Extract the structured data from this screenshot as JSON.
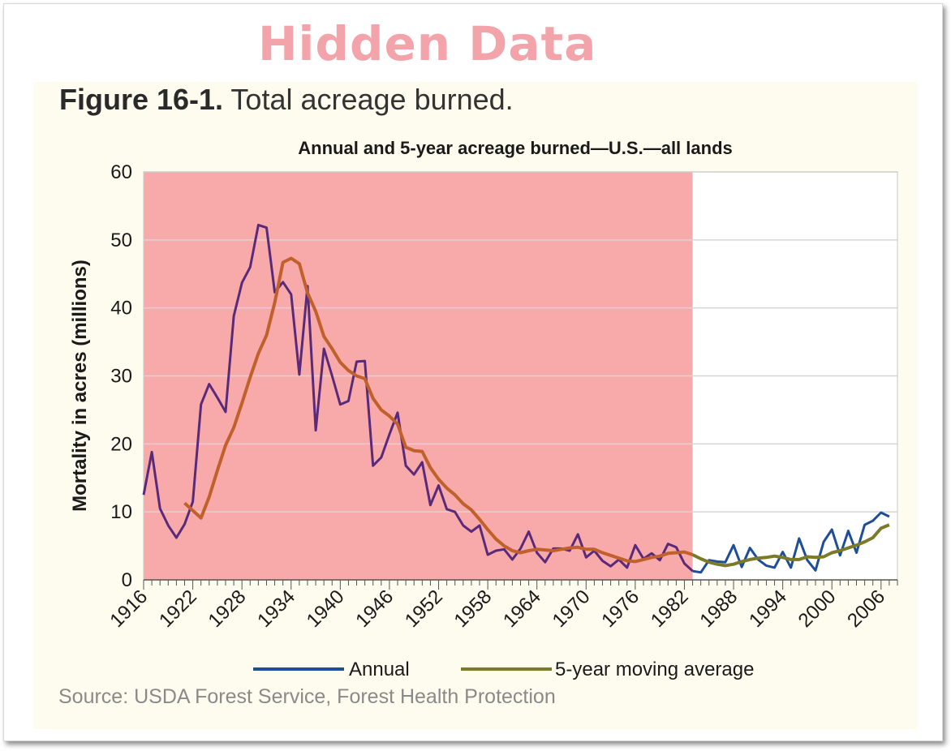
{
  "watermark": {
    "text": "Hidden Data"
  },
  "figure": {
    "label": "Figure 16-1.",
    "caption": "Total acreage burned."
  },
  "source": "Source: USDA Forest Service, Forest Health Protection",
  "colors": {
    "annual": "#1f4e99",
    "annual_highlighted": "#5a2a7a",
    "moving_average": "#7a7a2a",
    "moving_average_highlighted": "#c0602a",
    "highlight_region": "#f8aaaa",
    "grid": "#d6d6d6",
    "axis": "#555555"
  },
  "chart_data": {
    "type": "line",
    "title": "Annual and 5-year acreage burned—U.S.—all lands",
    "ylabel": "Mortality in acres (millions)",
    "xlabel": "",
    "xlim": [
      1916,
      2008
    ],
    "ylim": [
      0,
      60
    ],
    "yticks": [
      "0",
      "10",
      "20",
      "30",
      "40",
      "50",
      "60"
    ],
    "xticks": [
      "1916",
      "1922",
      "1928",
      "1934",
      "1940",
      "1946",
      "1952",
      "1958",
      "1964",
      "1970",
      "1976",
      "1982",
      "1988",
      "1994",
      "2000",
      "2006"
    ],
    "grid": true,
    "legend_position": "bottom",
    "highlight_region": {
      "x_start": 1916,
      "x_end": 1983,
      "label": "Hidden Data"
    },
    "series": [
      {
        "name": "Annual",
        "x": [
          1916,
          1917,
          1918,
          1919,
          1920,
          1921,
          1922,
          1923,
          1924,
          1925,
          1926,
          1927,
          1928,
          1929,
          1930,
          1931,
          1932,
          1933,
          1934,
          1935,
          1936,
          1937,
          1938,
          1939,
          1940,
          1941,
          1942,
          1943,
          1944,
          1945,
          1946,
          1947,
          1948,
          1949,
          1950,
          1951,
          1952,
          1953,
          1954,
          1955,
          1956,
          1957,
          1958,
          1959,
          1960,
          1961,
          1962,
          1963,
          1964,
          1965,
          1966,
          1967,
          1968,
          1969,
          1970,
          1971,
          1972,
          1973,
          1974,
          1975,
          1976,
          1977,
          1978,
          1979,
          1980,
          1981,
          1982,
          1983,
          1984,
          1985,
          1986,
          1987,
          1988,
          1989,
          1990,
          1991,
          1992,
          1993,
          1994,
          1995,
          1996,
          1997,
          1998,
          1999,
          2000,
          2001,
          2002,
          2003,
          2004,
          2005,
          2006,
          2007
        ],
        "values": [
          12.5,
          18.8,
          10.5,
          8,
          6.2,
          8.2,
          11.5,
          25.8,
          28.8,
          26.8,
          24.7,
          38.8,
          43.7,
          46,
          52.2,
          51.8,
          42.3,
          43.8,
          42,
          30.2,
          43.2,
          22,
          34,
          30,
          25.8,
          26.3,
          32.1,
          32.2,
          16.8,
          18,
          21.4,
          24.6,
          16.8,
          15.5,
          17.3,
          11,
          13.9,
          10.4,
          10,
          8,
          7.1,
          8,
          3.7,
          4.3,
          4.5,
          3,
          4.6,
          7.1,
          4,
          2.6,
          4.6,
          4.6,
          4.3,
          6.7,
          3.3,
          4.3,
          2.8,
          2,
          3,
          1.8,
          5.1,
          3.1,
          3.9,
          2.9,
          5.3,
          4.8,
          2.4,
          1.3,
          1.1,
          2.9,
          2.7,
          2.6,
          5.1,
          1.9,
          4.7,
          3,
          2.1,
          1.8,
          4.1,
          1.8,
          6.1,
          2.9,
          1.4,
          5.6,
          7.4,
          3.6,
          7.2,
          4,
          8.1,
          8.7,
          9.9,
          9.3
        ]
      },
      {
        "name": "5-year moving average",
        "x": [
          1921,
          1922,
          1923,
          1924,
          1925,
          1926,
          1927,
          1928,
          1929,
          1930,
          1931,
          1932,
          1933,
          1934,
          1935,
          1936,
          1937,
          1938,
          1939,
          1940,
          1941,
          1942,
          1943,
          1944,
          1945,
          1946,
          1947,
          1948,
          1949,
          1950,
          1951,
          1952,
          1953,
          1954,
          1955,
          1956,
          1957,
          1958,
          1959,
          1960,
          1961,
          1962,
          1963,
          1964,
          1965,
          1966,
          1967,
          1968,
          1969,
          1970,
          1971,
          1972,
          1973,
          1974,
          1975,
          1976,
          1977,
          1978,
          1979,
          1980,
          1981,
          1982,
          1983,
          1984,
          1985,
          1986,
          1987,
          1988,
          1989,
          1990,
          1991,
          1992,
          1993,
          1994,
          1995,
          1996,
          1997,
          1998,
          1999,
          2000,
          2001,
          2002,
          2003,
          2004,
          2005,
          2006,
          2007
        ],
        "values": [
          11.3,
          10.2,
          9.1,
          12.2,
          16.1,
          19.8,
          22.4,
          26,
          29.8,
          33.3,
          36,
          40.8,
          46.7,
          47.3,
          46.5,
          42.2,
          39.5,
          35.8,
          34,
          32,
          30.8,
          30,
          29.6,
          26.7,
          25,
          24.1,
          22.9,
          19.5,
          19,
          18.9,
          16.5,
          14.8,
          13.5,
          12.5,
          11.2,
          10.3,
          8.9,
          7.4,
          6,
          5,
          4.3,
          4,
          4.3,
          4.5,
          4.4,
          4.3,
          4.5,
          4.7,
          4.8,
          4.5,
          4.5,
          4,
          3.6,
          3.2,
          2.8,
          2.7,
          3,
          3.3,
          3.5,
          3.9,
          4,
          4.1,
          3.7,
          3.1,
          2.6,
          2.3,
          2.1,
          2.3,
          2.7,
          3,
          3.2,
          3.3,
          3.5,
          3.3,
          3,
          3,
          3.4,
          3.3,
          3.4,
          4,
          4.3,
          4.7,
          5.1,
          5.6,
          6.2,
          7.6,
          8.1
        ]
      }
    ]
  }
}
